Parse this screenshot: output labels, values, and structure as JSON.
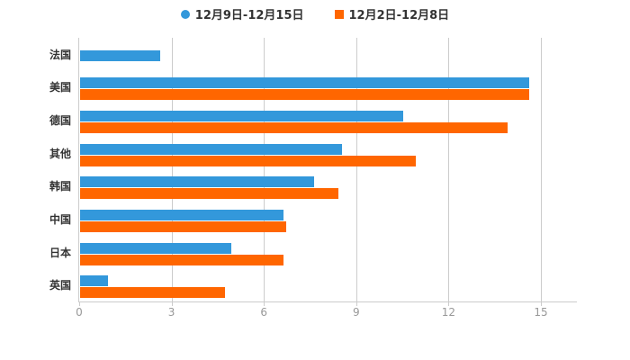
{
  "legend": {
    "items": [
      {
        "key": "week-dec9-15",
        "label": "12月9日-12月15日",
        "marker": "circle",
        "color": "#3398db"
      },
      {
        "key": "week-dec2-8",
        "label": "12月2日-12月8日",
        "marker": "square",
        "color": "#ff6600"
      }
    ]
  },
  "chart_data": {
    "type": "bar",
    "orientation": "horizontal",
    "title": "",
    "xlabel": "",
    "ylabel": "",
    "categories": [
      "法国",
      "美国",
      "德国",
      "其他",
      "韩国",
      "中国",
      "日本",
      "英国"
    ],
    "series": [
      {
        "name": "12月9日-12月15日",
        "key": "week-dec9-15",
        "color": "#3398db",
        "values": [
          2.6,
          14.6,
          10.5,
          8.5,
          7.6,
          6.6,
          4.9,
          0.9
        ]
      },
      {
        "name": "12月2日-12月8日",
        "key": "week-dec2-8",
        "color": "#ff6600",
        "values": [
          null,
          14.6,
          13.9,
          10.9,
          8.4,
          6.7,
          6.6,
          4.7
        ]
      }
    ],
    "xlim": [
      0,
      15
    ],
    "x_ticks": [
      0,
      3,
      6,
      9,
      12,
      15
    ],
    "grid": true,
    "legend_position": "top"
  },
  "colors": {
    "axis": "#cccccc",
    "grid": "#cccccc",
    "tick_label_text": "#999999",
    "category_label_text": "#333333",
    "legend_text": "#333333",
    "background": "#ffffff"
  }
}
